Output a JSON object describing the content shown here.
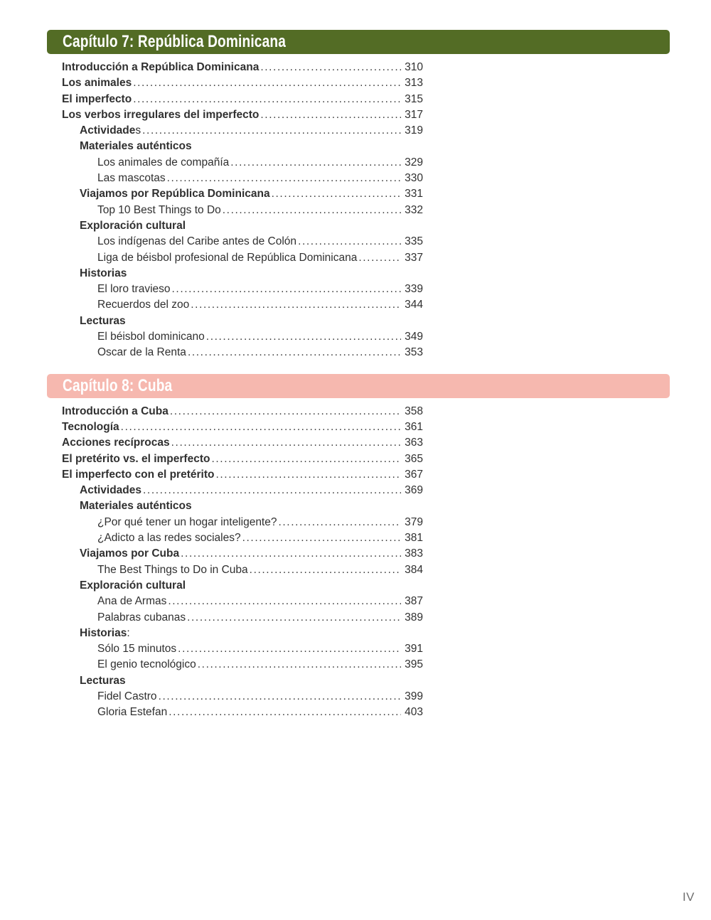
{
  "footer": {
    "page_number": "IV"
  },
  "colors": {
    "chapter7_banner": "#536C25",
    "chapter8_banner": "#F6B8AF",
    "banner_text": "#FFFFFF",
    "body_text": "#303030",
    "folio_text": "#6F6F6F"
  },
  "chapters": [
    {
      "title": "Capítulo 7: República Dominicana",
      "banner_color": "#536C25",
      "entries": [
        {
          "label": "Introducción a República Dominicana",
          "page": "310",
          "level": 0,
          "bold": true
        },
        {
          "label": "Los animales",
          "page": "313",
          "level": 0,
          "bold": true
        },
        {
          "label": "El imperfecto",
          "page": "315",
          "level": 0,
          "bold": true
        },
        {
          "label": "Los verbos irregulares del imperfecto",
          "page": "317",
          "level": 0,
          "bold": true
        },
        {
          "label": "Actividade",
          "suffix": "s",
          "page": "319",
          "level": 1,
          "bold": true
        },
        {
          "label": "Materiales auténticos",
          "level": 1,
          "bold": true
        },
        {
          "label": "Los animales de compañía",
          "page": "329",
          "level": 2,
          "bold": false
        },
        {
          "label": "Las mascotas",
          "page": "330",
          "level": 2,
          "bold": false
        },
        {
          "label": "Viajamos por República Dominicana",
          "page": "331",
          "level": 1,
          "bold": true
        },
        {
          "label": "Top 10 Best Things to Do",
          "page": "332",
          "level": 2,
          "bold": false
        },
        {
          "label": "Exploración cultural",
          "level": 1,
          "bold": true
        },
        {
          "label": "Los indígenas del Caribe antes de Colón",
          "page": "335",
          "level": 2,
          "bold": false
        },
        {
          "label": "Liga de béisbol profesional de República Dominicana",
          "page": "337",
          "level": 2,
          "bold": false
        },
        {
          "label": "Historias",
          "level": 1,
          "bold": true
        },
        {
          "label": "El loro travieso",
          "page": "339",
          "level": 2,
          "bold": false
        },
        {
          "label": "Recuerdos del zoo",
          "page": "344",
          "level": 2,
          "bold": false
        },
        {
          "label": "Lecturas",
          "level": 1,
          "bold": true
        },
        {
          "label": "El béisbol dominicano",
          "page": "349",
          "level": 2,
          "bold": false
        },
        {
          "label": "Oscar de la Renta",
          "page": "353",
          "level": 2,
          "bold": false
        }
      ]
    },
    {
      "title": "Capítulo 8: Cuba",
      "banner_color": "#F6B8AF",
      "entries": [
        {
          "label": "Introducción a Cuba",
          "page": "358",
          "level": 0,
          "bold": true
        },
        {
          "label": "Tecnología",
          "page": "361",
          "level": 0,
          "bold": true
        },
        {
          "label": "Acciones recíprocas",
          "page": "363",
          "level": 0,
          "bold": true
        },
        {
          "label": "El pretérito vs. el imperfecto",
          "page": "365",
          "level": 0,
          "bold": true
        },
        {
          "label": "El imperfecto con el pretérito",
          "page": "367",
          "level": 0,
          "bold": true
        },
        {
          "label": "Actividades",
          "page": "369",
          "level": 1,
          "bold": true
        },
        {
          "label": "Materiales auténticos",
          "level": 1,
          "bold": true
        },
        {
          "label": "¿Por qué tener un hogar inteligente?",
          "page": "379",
          "level": 2,
          "bold": false
        },
        {
          "label": "¿Adicto a las redes sociales?",
          "page": "381",
          "level": 2,
          "bold": false
        },
        {
          "label": "Viajamos por Cuba",
          "page": "383",
          "level": 1,
          "bold": true
        },
        {
          "label": "The Best Things to Do in Cuba",
          "page": "384",
          "level": 2,
          "bold": false
        },
        {
          "label": "Exploración cultural",
          "level": 1,
          "bold": true
        },
        {
          "label": "Ana de Armas",
          "page": "387",
          "level": 2,
          "bold": false
        },
        {
          "label": "Palabras cubanas",
          "page": "389",
          "level": 2,
          "bold": false
        },
        {
          "label": "Historias",
          "suffix": ":",
          "level": 1,
          "bold": true
        },
        {
          "label": "Sólo 15 minutos",
          "page": "391",
          "level": 2,
          "bold": false
        },
        {
          "label": "El genio tecnológico",
          "page": "395",
          "level": 2,
          "bold": false
        },
        {
          "label": "Lecturas",
          "level": 1,
          "bold": true
        },
        {
          "label": "Fidel Castro",
          "page": "399",
          "level": 2,
          "bold": false
        },
        {
          "label": "Gloria Estefan",
          "page": "403",
          "level": 2,
          "bold": false
        }
      ]
    }
  ]
}
